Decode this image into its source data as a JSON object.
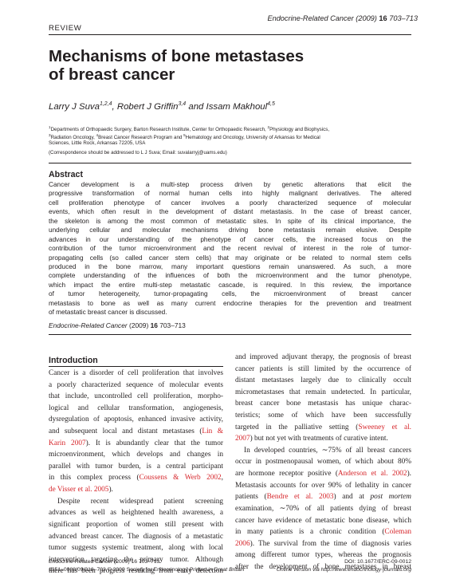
{
  "header": {
    "journal": "Endocrine-Related Cancer",
    "year_vol": "(2009)",
    "volume": "16",
    "pages": "703–713",
    "section": "REVIEW"
  },
  "title_lines": [
    "Mechanisms of bone metastases",
    "of breast cancer"
  ],
  "authors": {
    "a1": "Larry J Suva",
    "a1_sup": "1,2,4",
    "a2": "Robert J Griffin",
    "a2_sup": "3,4",
    "and": " and ",
    "a3": "Issam Makhoul",
    "a3_sup": "4,5"
  },
  "affiliations": {
    "line1": [
      "1",
      "Departments of Orthopaedic Surgery, Barton Research Institute, Center for Orthopaedic Research, ",
      "2",
      "Physiology and Biophysics,"
    ],
    "line2": [
      "3",
      "Radiation Oncology, ",
      "4",
      "Breast Cancer Research Program and ",
      "5",
      "Hematology and Oncology, University of Arkansas for Medical"
    ],
    "line3": "Sciences, Little Rock, Arkansas 72205, USA",
    "correspondence": "(Correspondence should be addressed to L J Suva; Email: suvalarryj@uams.edu)"
  },
  "abstract": {
    "heading": "Abstract",
    "lines": [
      "Cancer development is a multi-step process driven by genetic alterations that elicit the",
      "progressive transformation of normal human cells into highly malignant derivatives. The altered",
      "cell proliferation phenotype of cancer involves a poorly characterized sequence of molecular",
      "events, which often result in the development of distant metastasis. In the case of breast cancer,",
      "the skeleton is among the most common of metastatic sites. In spite of its clinical importance, the",
      "underlying cellular and molecular mechanisms driving bone metastasis remain elusive. Despite",
      "advances in our understanding of the phenotype of cancer cells, the increased focus on the",
      "contribution of the tumor microenvironment and the recent revival of interest in the role of tumor-",
      "propagating cells (so called cancer stem cells) that may originate or be related to normal stem cells",
      "produced in the bone marrow, many important questions remain unanswered. As such, a more",
      "complete understanding of the influences of both the microenvironment and the tumor phenotype,",
      "which impact the entire multi-step metastatic cascade, is required. In this review, the importance",
      "of tumor heterogeneity, tumor-propagating cells, the microenvironment of breast cancer",
      "metastasis to bone as well as many current endocrine therapies for the prevention and treatment",
      "of metastatic breast cancer is discussed."
    ],
    "citation": {
      "journal": "Endocrine-Related Cancer",
      "year": "(2009)",
      "volume": "16",
      "pages": "703–713"
    }
  },
  "introduction": {
    "heading": "Introduction",
    "left": {
      "l1": "Cancer is a disorder of cell proliferation that involves",
      "l2": "a poorly characterized sequence of molecular events",
      "l3": "that include, uncontrolled cell proliferation, morpho-",
      "l4": "logical and cellular transformation, angiogenesis,",
      "l5": "dysregulation of apoptosis, enhanced invasive activity,",
      "l6a": "and subsequent local and distant metastases (",
      "l6ref": "Lin &",
      "l7ref": "Karin 2007",
      "l7b": "). It is abundantly clear that the tumor",
      "l8": "microenvironment, which develops and changes in",
      "l9": "parallel with tumor burden, is a central participant",
      "l10a": "in this complex process (",
      "l10ref": "Coussens & Werb 2002",
      "l10b": ",",
      "l11ref": "de Visser et al. 2005",
      "l11b": ").",
      "l12": "Despite recent widespread patient screening",
      "l13": "advances as well as heightened health awareness, a",
      "l14": "significant proportion of women still present with",
      "l15": "advanced breast cancer. The diagnosis of a metastatic",
      "l16": "tumor suggests systemic treatment, along with local",
      "l17": "intervention targeting the primary tumor. Although",
      "l18": "there has been progress resulting from early detection"
    },
    "right": {
      "r1": "and improved adjuvant therapy, the prognosis of breast",
      "r2": "cancer patients is still limited by the occurrence of",
      "r3": "distant metastases largely due to clinically occult",
      "r4": "micrometastases that remain undetected. In particular,",
      "r5": "breast cancer bone metastasis has unique charac-",
      "r6": "teristics; some of which have been successfully",
      "r7a": "targeted in the palliative setting (",
      "r7ref": "Sweeney et al.",
      "r8ref": "2007",
      "r8b": ") but not yet with treatments of curative intent.",
      "r9": "In developed countries, ∼75% of all breast cancers",
      "r10": "occur in postmenopausal women, of which about 80%",
      "r11a": "are hormone receptor positive (",
      "r11ref": "Anderson et al. 2002",
      "r11b": ").",
      "r12": "Metastasis accounts for over 90% of lethality in cancer",
      "r13a": "patients (",
      "r13ref": "Bendre et al. 2003",
      "r13b": ") and at ",
      "r13c": "post mortem",
      "r14": "examination, ∼70% of all patients dying of breast",
      "r15": "cancer have evidence of metastatic bone disease, which",
      "r16a": "in many patients is a chronic condition (",
      "r16ref": "Coleman",
      "r17ref": "2006",
      "r17b": "). The survival from the time of diagnosis varies",
      "r18": "among different tumor types, whereas the prognosis",
      "r19": "after the development of bone metastases in breast"
    }
  },
  "footer": {
    "cite": "Endocrine-Related Cancer (2009) 16 703–713",
    "doi_label": "DOI: ",
    "doi": "10.1677/ERC-09-0012",
    "issn": "1351–0088/09/016–703 © 2009 Society for Endocrinology",
    "printed": "Printed in Great Britain",
    "online": "Online version via http://www.endocrinology-journals.org"
  }
}
